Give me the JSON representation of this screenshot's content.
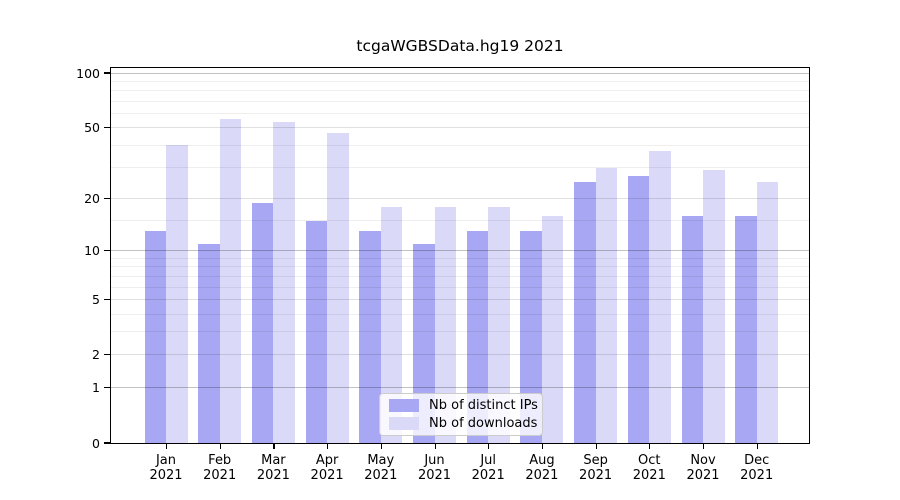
{
  "chart_data": {
    "type": "bar",
    "title": "tcgaWGBSData.hg19 2021",
    "categories": [
      {
        "month": "Jan",
        "year": "2021"
      },
      {
        "month": "Feb",
        "year": "2021"
      },
      {
        "month": "Mar",
        "year": "2021"
      },
      {
        "month": "Apr",
        "year": "2021"
      },
      {
        "month": "May",
        "year": "2021"
      },
      {
        "month": "Jun",
        "year": "2021"
      },
      {
        "month": "Jul",
        "year": "2021"
      },
      {
        "month": "Aug",
        "year": "2021"
      },
      {
        "month": "Sep",
        "year": "2021"
      },
      {
        "month": "Oct",
        "year": "2021"
      },
      {
        "month": "Nov",
        "year": "2021"
      },
      {
        "month": "Dec",
        "year": "2021"
      }
    ],
    "series": [
      {
        "name": "Nb of distinct IPs",
        "color": "#a7a7f3",
        "values": [
          13,
          11,
          19,
          15,
          13,
          11,
          13,
          13,
          25,
          27,
          16,
          16
        ]
      },
      {
        "name": "Nb of downloads",
        "color": "#dadaf8",
        "values": [
          40,
          56,
          54,
          47,
          18,
          18,
          18,
          16,
          30,
          37,
          29,
          25
        ]
      }
    ],
    "yscale": "log1p",
    "ylim": [
      0,
      106
    ],
    "yticks": [
      0,
      1,
      2,
      5,
      10,
      20,
      50,
      100
    ],
    "gridlines": {
      "major": [
        1,
        10,
        100
      ],
      "mid": [
        2,
        5,
        20,
        50
      ],
      "minor": [
        3,
        4,
        6,
        7,
        8,
        9,
        15,
        30,
        40,
        60,
        70,
        80,
        90
      ]
    },
    "grid": true,
    "legend_position": "inside-bottom-center"
  }
}
